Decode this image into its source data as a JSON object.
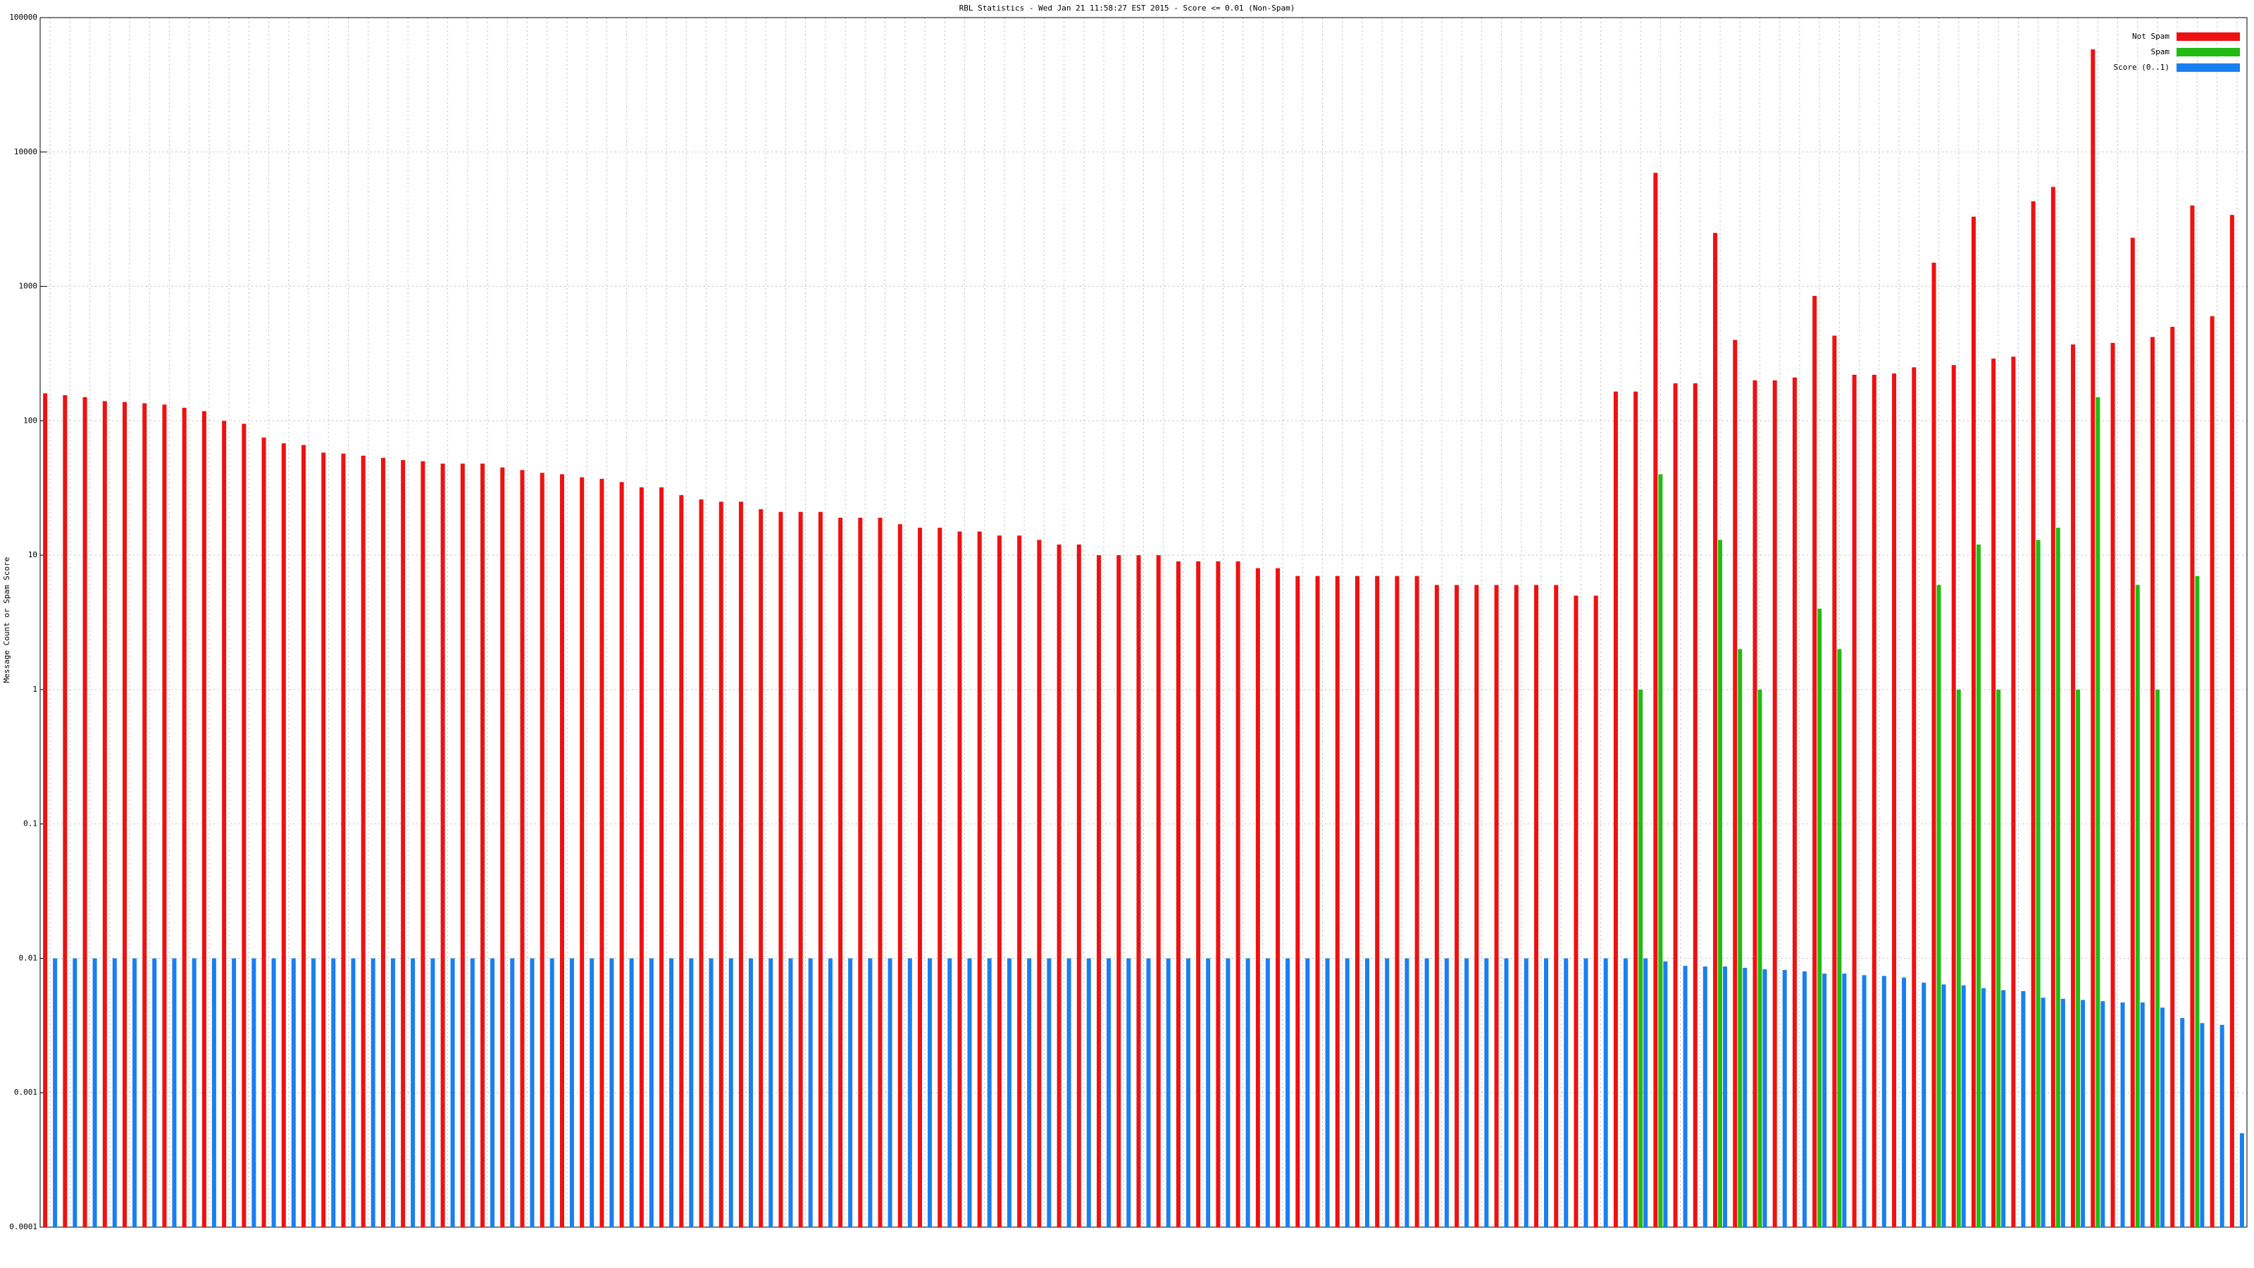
{
  "chart_data": {
    "type": "bar",
    "title": "RBL Statistics - Wed Jan 21 11:58:27 EST 2015 - Score <= 0.01 (Non-Spam)",
    "y_label": "Message Count or Spam Score",
    "log_scale_y": true,
    "grid": true,
    "legend": "top-right",
    "ylim": [
      0.0001,
      100000
    ],
    "yticks": [
      0.0001,
      0.001,
      0.01,
      0.1,
      1,
      10,
      100,
      1000,
      10000,
      100000
    ],
    "categories": [
      null,
      null,
      null,
      null,
      null,
      null,
      null,
      null,
      null,
      null,
      null,
      null,
      null,
      null,
      null,
      null,
      null,
      null,
      null,
      null,
      null,
      null,
      null,
      null,
      null,
      null,
      null,
      null,
      null,
      null,
      null,
      null,
      null,
      null,
      null,
      null,
      null,
      null,
      null,
      null,
      null,
      null,
      null,
      null,
      null,
      null,
      null,
      null,
      null,
      null,
      null,
      null,
      null,
      null,
      null,
      null,
      null,
      null,
      null,
      null,
      null,
      null,
      null,
      null,
      null,
      null,
      null,
      null,
      null,
      null,
      null,
      null,
      null,
      null,
      null,
      null,
      null,
      null,
      null,
      null,
      null,
      null,
      null,
      null,
      null,
      null,
      null,
      null,
      null,
      null,
      null,
      null,
      null,
      null,
      null,
      null,
      null,
      null,
      null,
      null,
      null,
      null,
      null,
      null,
      null,
      null,
      null,
      null,
      null,
      null,
      null
    ],
    "series": [
      {
        "name": "Not Spam",
        "color": "#ee1111",
        "values": [
          160,
          155,
          150,
          140,
          138,
          135,
          132,
          125,
          118,
          100,
          95,
          75,
          68,
          66,
          58,
          57,
          55,
          53,
          51,
          50,
          48,
          48,
          48,
          45,
          43,
          41,
          40,
          38,
          37,
          35,
          32,
          32,
          28,
          26,
          25,
          25,
          22,
          21,
          21,
          21,
          19,
          19,
          19,
          17,
          16,
          16,
          15,
          15,
          14,
          14,
          13,
          12,
          12,
          10,
          10,
          10,
          10,
          9,
          9,
          9,
          9,
          8,
          8,
          7,
          7,
          7,
          7,
          7,
          7,
          7,
          6,
          6,
          6,
          6,
          6,
          6,
          6,
          5,
          5,
          165,
          165,
          7000,
          190,
          190,
          2500,
          400,
          200,
          200,
          210,
          850,
          430,
          220,
          220,
          225,
          250,
          1500,
          260,
          3300,
          290,
          300,
          4300,
          5500,
          370,
          58000,
          380,
          2300,
          420,
          500,
          4000,
          600,
          3400
        ]
      },
      {
        "name": "Spam",
        "color": "#22bb11",
        "values": [
          null,
          null,
          null,
          null,
          null,
          null,
          null,
          null,
          null,
          null,
          null,
          null,
          null,
          null,
          null,
          null,
          null,
          null,
          null,
          null,
          null,
          null,
          null,
          null,
          null,
          null,
          null,
          null,
          null,
          null,
          null,
          null,
          null,
          null,
          null,
          null,
          null,
          null,
          null,
          null,
          null,
          null,
          null,
          null,
          null,
          null,
          null,
          null,
          null,
          null,
          null,
          null,
          null,
          null,
          null,
          null,
          null,
          null,
          null,
          null,
          null,
          null,
          null,
          null,
          null,
          null,
          null,
          null,
          null,
          null,
          null,
          null,
          null,
          null,
          null,
          null,
          null,
          null,
          null,
          null,
          1,
          40,
          null,
          null,
          13,
          2,
          1,
          null,
          null,
          4,
          2,
          null,
          null,
          null,
          null,
          6,
          1,
          12,
          1,
          null,
          13,
          16,
          1,
          150,
          null,
          6,
          1,
          null,
          7,
          null,
          null
        ]
      },
      {
        "name": "Score (0..1)",
        "color": "#1a7ff0",
        "values": [
          0.01,
          0.01,
          0.01,
          0.01,
          0.01,
          0.01,
          0.01,
          0.01,
          0.01,
          0.01,
          0.01,
          0.01,
          0.01,
          0.01,
          0.01,
          0.01,
          0.01,
          0.01,
          0.01,
          0.01,
          0.01,
          0.01,
          0.01,
          0.01,
          0.01,
          0.01,
          0.01,
          0.01,
          0.01,
          0.01,
          0.01,
          0.01,
          0.01,
          0.01,
          0.01,
          0.01,
          0.01,
          0.01,
          0.01,
          0.01,
          0.01,
          0.01,
          0.01,
          0.01,
          0.01,
          0.01,
          0.01,
          0.01,
          0.01,
          0.01,
          0.01,
          0.01,
          0.01,
          0.01,
          0.01,
          0.01,
          0.01,
          0.01,
          0.01,
          0.01,
          0.01,
          0.01,
          0.01,
          0.01,
          0.01,
          0.01,
          0.01,
          0.01,
          0.01,
          0.01,
          0.01,
          0.01,
          0.01,
          0.01,
          0.01,
          0.01,
          0.01,
          0.01,
          0.01,
          0.01,
          0.01,
          0.0095,
          0.0088,
          0.0087,
          0.0087,
          0.0085,
          0.0083,
          0.0082,
          0.008,
          0.0077,
          0.0077,
          0.0075,
          0.0074,
          0.0072,
          0.0066,
          0.0064,
          0.0063,
          0.006,
          0.0058,
          0.0057,
          0.0051,
          0.005,
          0.0049,
          0.0048,
          0.0047,
          0.0047,
          0.0043,
          0.0036,
          0.0033,
          0.0032,
          0.0005
        ]
      }
    ]
  }
}
